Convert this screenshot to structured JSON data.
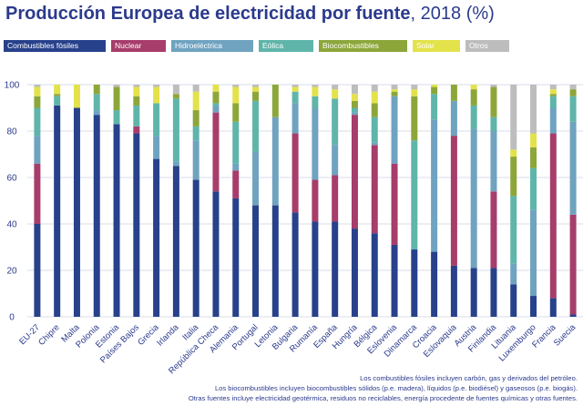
{
  "title": {
    "bold": "Producción Europea de electricidad por fuente",
    "regular": ", 2018 (%)"
  },
  "notes": [
    "Los combustibles fósiles incluyen carbón, gas y derivados del petróleo.",
    "Los biocombustibles incluyen biocombustibles sólidos (p.e. madera), líquidos (p.e. biodiésel) y gaseosos (p.e. biogás).",
    "Otras fuentes incluye electricidad geotérmica, residuos no reciclables, energía procedente de fuentes químicas y otras fuentes."
  ],
  "colors": {
    "Combustibles fósiles": "#27418b",
    "Nuclear": "#a73d6b",
    "Hidroeléctrica": "#6fa3c0",
    "Eólica": "#5fb5aa",
    "Biocombustibles": "#8da63a",
    "Solar": "#e3e24a",
    "Otros": "#bdbdbd"
  },
  "chart_data": {
    "type": "bar",
    "stacked": true,
    "ylim": [
      0,
      100
    ],
    "yticks": [
      0,
      20,
      40,
      60,
      80,
      100
    ],
    "grid": true,
    "legend_position": "top",
    "categories": [
      "EU-27",
      "Chipre",
      "Malta",
      "Polonia",
      "Estonia",
      "Países Bajos",
      "Grecia",
      "Irlanda",
      "Italia",
      "República Checa",
      "Alemania",
      "Portugal",
      "Letonia",
      "Bulgaria",
      "Rumanía",
      "España",
      "Hungría",
      "Bélgica",
      "Eslovenia",
      "Dinamarca",
      "Croacia",
      "Eslovaquia",
      "Austria",
      "Finlandia",
      "Lituania",
      "Luxemburgo",
      "Francia",
      "Suecia"
    ],
    "series": [
      {
        "name": "Combustibles fósiles",
        "values": [
          40,
          91,
          90,
          87,
          83,
          79,
          68,
          65,
          59,
          54,
          51,
          48,
          48,
          45,
          41,
          41,
          38,
          36,
          31,
          29,
          28,
          22,
          21,
          21,
          14,
          9,
          8,
          1
        ]
      },
      {
        "name": "Nuclear",
        "values": [
          26,
          0,
          0,
          0,
          0,
          3,
          0,
          0,
          0,
          34,
          12,
          0,
          0,
          34,
          18,
          20,
          49,
          38,
          35,
          0,
          0,
          56,
          0,
          33,
          0,
          0,
          71,
          43
        ]
      },
      {
        "name": "Hidroeléctrica",
        "values": [
          12,
          0,
          0,
          2,
          0,
          0,
          10,
          2,
          17,
          3,
          3,
          23,
          38,
          13,
          31,
          13,
          1,
          1,
          29,
          0,
          57,
          15,
          60,
          26,
          9,
          37,
          11,
          40
        ]
      },
      {
        "name": "Eólica",
        "values": [
          12,
          4,
          0,
          7,
          6,
          9,
          14,
          27,
          6,
          1,
          18,
          22,
          0,
          5,
          5,
          20,
          2,
          11,
          0,
          47,
          11,
          0,
          10,
          6,
          29,
          18,
          5,
          11
        ]
      },
      {
        "name": "Biocombustibles",
        "values": [
          5,
          1,
          0,
          4,
          10,
          4,
          0,
          2,
          7,
          5,
          8,
          4,
          14,
          0,
          0,
          0,
          3,
          6,
          2,
          19,
          3,
          7,
          7,
          13,
          17,
          9,
          1,
          3
        ]
      },
      {
        "name": "Solar",
        "values": [
          4,
          4,
          10,
          0,
          0,
          4,
          7,
          0,
          8,
          3,
          7,
          2,
          0,
          2,
          4,
          4,
          3,
          5,
          1,
          3,
          1,
          0,
          2,
          0,
          3,
          6,
          2,
          0
        ]
      },
      {
        "name": "Otros",
        "values": [
          1,
          0,
          0,
          0,
          1,
          1,
          1,
          4,
          3,
          0,
          1,
          1,
          0,
          1,
          1,
          2,
          4,
          3,
          2,
          2,
          0,
          0,
          0,
          1,
          28,
          21,
          2,
          2
        ]
      }
    ]
  }
}
